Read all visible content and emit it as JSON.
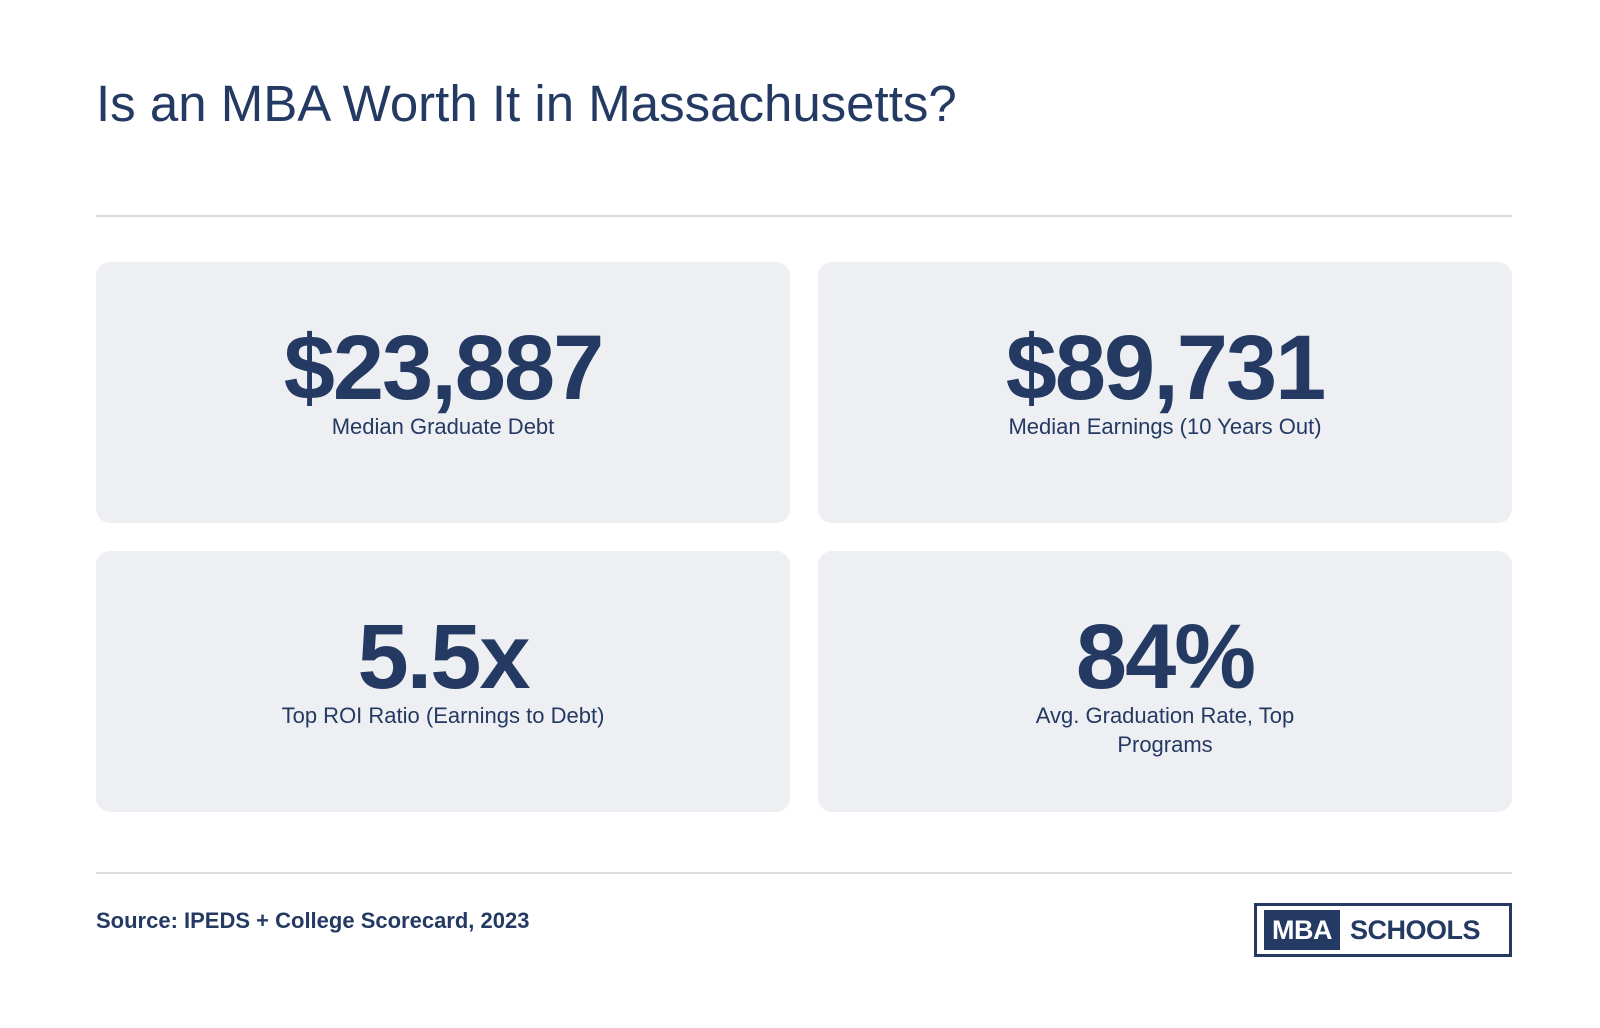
{
  "title": "Is an MBA Worth It in Massachusetts?",
  "stats": [
    {
      "value": "$23,887",
      "label": "Median Graduate Debt"
    },
    {
      "value": "$89,731",
      "label": "Median Earnings (10 Years Out)"
    },
    {
      "value": "5.5x",
      "label": "Top ROI Ratio (Earnings to Debt)"
    },
    {
      "value": "84%",
      "label": "Avg. Graduation Rate, Top Programs"
    }
  ],
  "footer": {
    "source": "Source: IPEDS + College Scorecard, 2023",
    "logo": {
      "mba": "MBA",
      "schools": "SCHOOLS"
    }
  },
  "colors": {
    "primary": "#243a63",
    "card_background": "#eeeff2",
    "divider": "#d9dbe0"
  }
}
